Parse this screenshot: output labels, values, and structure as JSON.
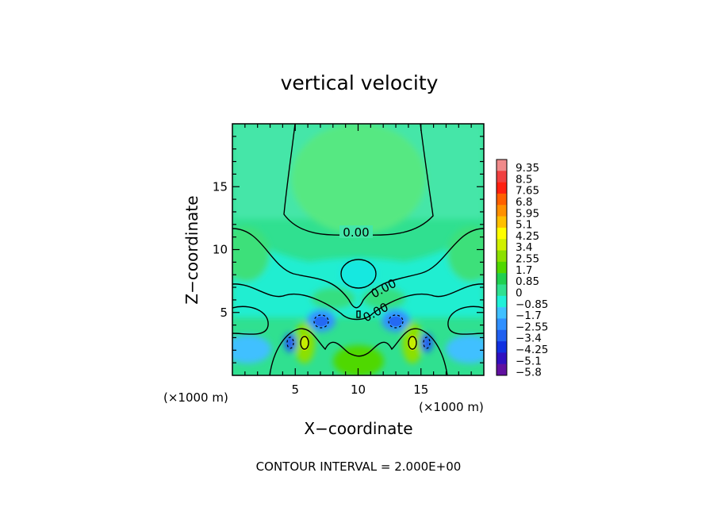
{
  "chart_data": {
    "type": "heatmap",
    "title": "vertical velocity",
    "xlabel": "X−coordinate",
    "ylabel": "Z−coordinate",
    "x_unit": "(×1000 m)",
    "z_unit": "(×1000 m)",
    "xlim": [
      0,
      20
    ],
    "ylim": [
      0,
      20
    ],
    "x_ticks": [
      5,
      10,
      15
    ],
    "y_ticks": [
      5,
      10,
      15
    ],
    "footer": "CONTOUR INTERVAL = 2.000E+00",
    "contour_label": "0.00",
    "colorbar": {
      "labels": [
        "9.35",
        "8.5",
        "7.65",
        "6.8",
        "5.95",
        "5.1",
        "4.25",
        "3.4",
        "2.55",
        "1.7",
        "0.85",
        "0",
        "−0.85",
        "−1.7",
        "−2.55",
        "−3.4",
        "−4.25",
        "−5.1",
        "−5.8"
      ],
      "colors": [
        "#f08a8a",
        "#f04040",
        "#ff2010",
        "#ff6000",
        "#ff9000",
        "#ffc000",
        "#ffff00",
        "#d0f000",
        "#8ce000",
        "#50d800",
        "#20d050",
        "#30e090",
        "#20f0d8",
        "#40c0ff",
        "#3090ff",
        "#2060f0",
        "#1030e0",
        "#3010c0",
        "#6010a0"
      ]
    },
    "field": {
      "background": 0.3,
      "features": [
        {
          "x": 5.8,
          "z": 2.6,
          "value": 3.4
        },
        {
          "x": 14.2,
          "z": 2.6,
          "value": 3.4
        },
        {
          "x": 10.0,
          "z": 1.5,
          "value": 1.3
        },
        {
          "x": 4.6,
          "z": 2.6,
          "value": -3.0
        },
        {
          "x": 15.4,
          "z": 2.6,
          "value": -3.0
        },
        {
          "x": 7.0,
          "z": 4.2,
          "value": -2.8
        },
        {
          "x": 13.0,
          "z": 4.2,
          "value": -2.8
        },
        {
          "x": 10.0,
          "z": 8.0,
          "value": -0.6
        },
        {
          "x": 1.0,
          "z": 2.0,
          "value": -1.2
        },
        {
          "x": 19.0,
          "z": 2.0,
          "value": -1.2
        },
        {
          "x": 10.0,
          "z": 14.5,
          "value": 0.7
        },
        {
          "x": 1.2,
          "z": 10.0,
          "value": 0.9
        },
        {
          "x": 18.8,
          "z": 10.0,
          "value": 0.9
        },
        {
          "x": 8.0,
          "z": 5.8,
          "value": 0.9
        },
        {
          "x": 12.0,
          "z": 5.8,
          "value": 0.9
        }
      ]
    }
  }
}
